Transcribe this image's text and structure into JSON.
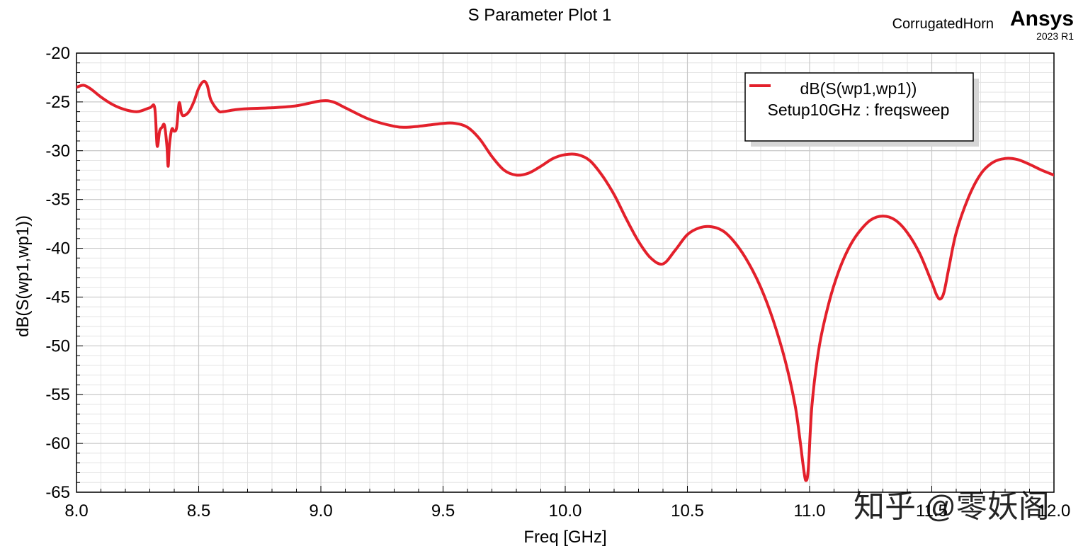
{
  "header": {
    "project": "CorrugatedHorn",
    "brand": "Ansys",
    "version": "2023 R1"
  },
  "watermark": "知乎 @零妖阁",
  "colors": {
    "series": "#e3202b",
    "grid_major": "#c8c8c8",
    "grid_minor": "#e4e4e4",
    "background": "#ffffff"
  },
  "chart_data": {
    "type": "line",
    "title": "S Parameter Plot 1",
    "xlabel": "Freq [GHz]",
    "ylabel": "dB(S(wp1,wp1))",
    "xlim": [
      8.0,
      12.0
    ],
    "ylim": [
      -65,
      -20
    ],
    "xticks": [
      8.0,
      8.5,
      9.0,
      9.5,
      10.0,
      10.5,
      11.0,
      11.5,
      12.0
    ],
    "xtick_labels": [
      "8.0",
      "8.5",
      "9.0",
      "9.5",
      "10.0",
      "10.5",
      "11.0",
      "11.5",
      "12.0"
    ],
    "yticks": [
      -20,
      -25,
      -30,
      -35,
      -40,
      -45,
      -50,
      -55,
      -60,
      -65
    ],
    "ytick_labels": [
      "-20",
      "-25",
      "-30",
      "-35",
      "-40",
      "-45",
      "-50",
      "-55",
      "-60",
      "-65"
    ],
    "grid": true,
    "legend": {
      "placement": "top-right",
      "entries": [
        {
          "label": "dB(S(wp1,wp1))",
          "sublabel": "Setup10GHz : freqsweep",
          "color": "#e3202b"
        }
      ]
    },
    "series": [
      {
        "name": "dB(S(wp1,wp1))",
        "color": "#e3202b",
        "x": [
          8.0,
          8.03,
          8.06,
          8.1,
          8.15,
          8.2,
          8.25,
          8.3,
          8.32,
          8.33,
          8.34,
          8.35,
          8.36,
          8.37,
          8.375,
          8.38,
          8.39,
          8.4,
          8.41,
          8.42,
          8.43,
          8.44,
          8.46,
          8.48,
          8.5,
          8.52,
          8.535,
          8.55,
          8.58,
          8.6,
          8.65,
          8.7,
          8.8,
          8.9,
          9.0,
          9.05,
          9.1,
          9.2,
          9.3,
          9.35,
          9.4,
          9.5,
          9.55,
          9.6,
          9.65,
          9.7,
          9.75,
          9.8,
          9.85,
          9.9,
          9.95,
          10.0,
          10.05,
          10.1,
          10.15,
          10.2,
          10.25,
          10.3,
          10.35,
          10.4,
          10.45,
          10.5,
          10.55,
          10.6,
          10.65,
          10.7,
          10.75,
          10.8,
          10.85,
          10.9,
          10.94,
          10.96,
          10.975,
          10.985,
          10.995,
          11.01,
          11.04,
          11.08,
          11.12,
          11.16,
          11.2,
          11.25,
          11.3,
          11.35,
          11.4,
          11.45,
          11.5,
          11.52,
          11.535,
          11.55,
          11.57,
          11.6,
          11.65,
          11.7,
          11.75,
          11.8,
          11.85,
          11.9,
          11.95,
          12.0
        ],
        "y": [
          -23.5,
          -23.3,
          -23.7,
          -24.5,
          -25.3,
          -25.8,
          -26.0,
          -25.6,
          -25.6,
          -29.5,
          -28.0,
          -27.6,
          -27.4,
          -29.5,
          -31.6,
          -29.5,
          -27.8,
          -28.0,
          -27.6,
          -25.1,
          -26.2,
          -26.4,
          -26.0,
          -25.0,
          -23.6,
          -22.9,
          -23.3,
          -24.8,
          -25.9,
          -26.0,
          -25.8,
          -25.7,
          -25.6,
          -25.4,
          -24.9,
          -25.0,
          -25.6,
          -26.8,
          -27.5,
          -27.6,
          -27.5,
          -27.2,
          -27.2,
          -27.6,
          -28.8,
          -30.6,
          -32.0,
          -32.5,
          -32.3,
          -31.6,
          -30.8,
          -30.4,
          -30.4,
          -31.0,
          -32.5,
          -34.5,
          -37.0,
          -39.3,
          -41.0,
          -41.6,
          -40.2,
          -38.6,
          -37.9,
          -37.8,
          -38.3,
          -39.6,
          -41.5,
          -44.0,
          -47.3,
          -51.5,
          -56.0,
          -59.5,
          -62.5,
          -63.8,
          -62.5,
          -56.0,
          -50.0,
          -45.5,
          -42.3,
          -40.0,
          -38.4,
          -37.1,
          -36.7,
          -37.1,
          -38.4,
          -40.5,
          -43.5,
          -44.8,
          -45.2,
          -44.5,
          -42.0,
          -38.4,
          -34.8,
          -32.4,
          -31.2,
          -30.8,
          -30.9,
          -31.4,
          -32.0,
          -32.5
        ]
      }
    ]
  }
}
